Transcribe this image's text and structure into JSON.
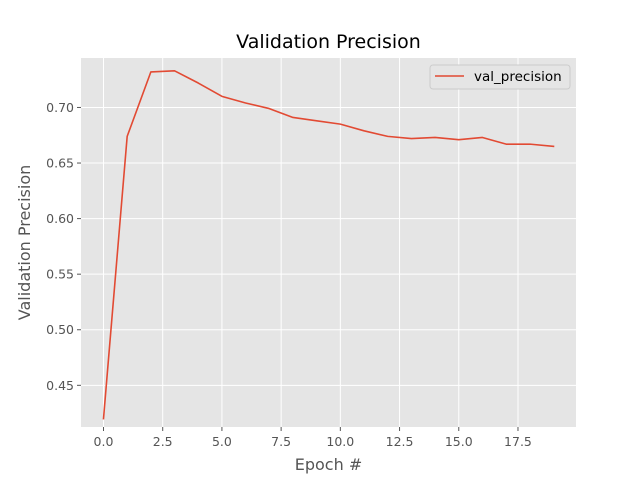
{
  "chart_data": {
    "type": "line",
    "title": "Validation Precision",
    "xlabel": "Epoch #",
    "ylabel": "Validation Precision",
    "xlim": [
      -0.95,
      19.95
    ],
    "ylim": [
      0.4125,
      0.7445
    ],
    "x_ticks": [
      0.0,
      2.5,
      5.0,
      7.5,
      10.0,
      12.5,
      15.0,
      17.5
    ],
    "x_tick_labels": [
      "0.0",
      "2.5",
      "5.0",
      "7.5",
      "10.0",
      "12.5",
      "15.0",
      "17.5"
    ],
    "y_ticks": [
      0.45,
      0.5,
      0.55,
      0.6,
      0.65,
      0.7
    ],
    "y_tick_labels": [
      "0.45",
      "0.50",
      "0.55",
      "0.60",
      "0.65",
      "0.70"
    ],
    "grid": true,
    "legend_position": "top-right",
    "series": [
      {
        "name": "val_precision",
        "color": "#e24a33",
        "x": [
          0,
          1,
          2,
          3,
          4,
          5,
          6,
          7,
          8,
          9,
          10,
          11,
          12,
          13,
          14,
          15,
          16,
          17,
          18,
          19
        ],
        "y": [
          0.42,
          0.674,
          0.732,
          0.733,
          0.722,
          0.71,
          0.704,
          0.699,
          0.691,
          0.688,
          0.685,
          0.679,
          0.674,
          0.672,
          0.673,
          0.671,
          0.673,
          0.667,
          0.667,
          0.665
        ]
      }
    ]
  },
  "style": {
    "plot_background": "#e5e5e5",
    "grid_color": "#ffffff",
    "text_color": "#555555"
  }
}
